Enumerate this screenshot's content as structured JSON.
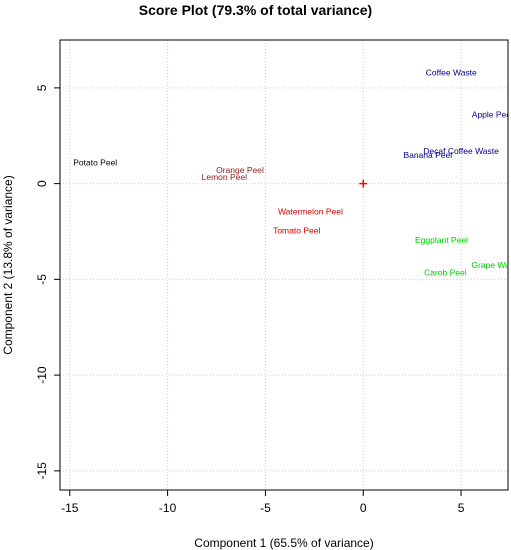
{
  "chart_data": {
    "type": "scatter",
    "title": "Score Plot (79.3% of total variance)",
    "xlabel": "Component 1 (65.5% of variance)",
    "ylabel": "Component 2 (13.8% of variance)",
    "xlim": [
      -15.5,
      7.4
    ],
    "ylim": [
      -16,
      7.5
    ],
    "xticks": [
      -15,
      -10,
      -5,
      0,
      5
    ],
    "yticks": [
      5,
      0,
      -5,
      -10,
      -15
    ],
    "grid": true,
    "center_marker": {
      "x": 0,
      "y": 0,
      "color": "#ff0000"
    },
    "points": [
      {
        "label": "Potato Peel",
        "x": -13.7,
        "y": 1.1,
        "color": "#000000"
      },
      {
        "label": "Orange Peel",
        "x": -6.3,
        "y": 0.7,
        "color": "#8b1a1a"
      },
      {
        "label": "Lemon Peel",
        "x": -7.1,
        "y": 0.35,
        "color": "#8b1a1a"
      },
      {
        "label": "Watermelon Peel",
        "x": -2.7,
        "y": -1.45,
        "color": "#cc0000"
      },
      {
        "label": "Tomato Peel",
        "x": -3.4,
        "y": -2.45,
        "color": "#cc0000"
      },
      {
        "label": "Coffee Waste",
        "x": 4.5,
        "y": 5.8,
        "color": "#00008b"
      },
      {
        "label": "Apple Peel",
        "x": 6.6,
        "y": 3.6,
        "color": "#00008b"
      },
      {
        "label": "Decaf Coffee Waste",
        "x": 5.0,
        "y": 1.7,
        "color": "#00008b"
      },
      {
        "label": "Banana Peel",
        "x": 3.3,
        "y": 1.5,
        "color": "#00008b"
      },
      {
        "label": "Eggplant Peel",
        "x": 4.0,
        "y": -2.95,
        "color": "#00cc00"
      },
      {
        "label": "Grape Waste",
        "x": 6.8,
        "y": -4.25,
        "color": "#00cc00"
      },
      {
        "label": "Carob Peel",
        "x": 4.2,
        "y": -4.65,
        "color": "#00cc00"
      }
    ]
  }
}
